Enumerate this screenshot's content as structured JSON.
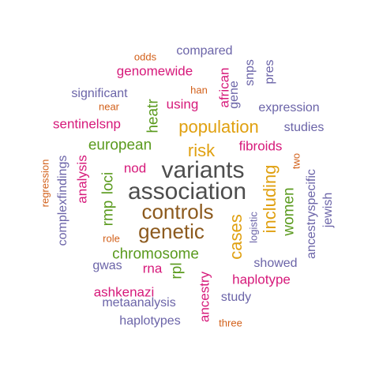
{
  "palette": {
    "dark_gray": "#4d4d4d",
    "brown": "#8c5a1e",
    "gold": "#e0a010",
    "green": "#5a9a1e",
    "magenta": "#d6197a",
    "purple": "#6b64a8",
    "orange": "#d2601a"
  },
  "words": [
    {
      "text": "variants",
      "color": "#4d4d4d"
    },
    {
      "text": "association",
      "color": "#4d4d4d"
    },
    {
      "text": "controls",
      "color": "#8c5a1e"
    },
    {
      "text": "genetic",
      "color": "#8c5a1e"
    },
    {
      "text": "population",
      "color": "#e0a010"
    },
    {
      "text": "risk",
      "color": "#e0a010"
    },
    {
      "text": "including",
      "color": "#e0a010"
    },
    {
      "text": "cases",
      "color": "#e0a010"
    },
    {
      "text": "european",
      "color": "#5a9a1e"
    },
    {
      "text": "chromosome",
      "color": "#5a9a1e"
    },
    {
      "text": "loci",
      "color": "#5a9a1e"
    },
    {
      "text": "rmp",
      "color": "#5a9a1e"
    },
    {
      "text": "heatr",
      "color": "#5a9a1e"
    },
    {
      "text": "rpl",
      "color": "#5a9a1e"
    },
    {
      "text": "women",
      "color": "#5a9a1e"
    },
    {
      "text": "genomewide",
      "color": "#d6197a"
    },
    {
      "text": "sentinelsnp",
      "color": "#d6197a"
    },
    {
      "text": "using",
      "color": "#d6197a"
    },
    {
      "text": "fibroids",
      "color": "#d6197a"
    },
    {
      "text": "nod",
      "color": "#d6197a"
    },
    {
      "text": "analysis",
      "color": "#d6197a"
    },
    {
      "text": "haplotype",
      "color": "#d6197a"
    },
    {
      "text": "ashkenazi",
      "color": "#d6197a"
    },
    {
      "text": "rna",
      "color": "#d6197a"
    },
    {
      "text": "ancestry",
      "color": "#d6197a"
    },
    {
      "text": "african",
      "color": "#d6197a"
    },
    {
      "text": "compared",
      "color": "#6b64a8"
    },
    {
      "text": "significant",
      "color": "#6b64a8"
    },
    {
      "text": "expression",
      "color": "#6b64a8"
    },
    {
      "text": "studies",
      "color": "#6b64a8"
    },
    {
      "text": "complexfindings",
      "color": "#6b64a8"
    },
    {
      "text": "snps",
      "color": "#6b64a8"
    },
    {
      "text": "pres",
      "color": "#6b64a8"
    },
    {
      "text": "gene",
      "color": "#6b64a8"
    },
    {
      "text": "showed",
      "color": "#6b64a8"
    },
    {
      "text": "gwas",
      "color": "#6b64a8"
    },
    {
      "text": "study",
      "color": "#6b64a8"
    },
    {
      "text": "metaanalysis",
      "color": "#6b64a8"
    },
    {
      "text": "haplotypes",
      "color": "#6b64a8"
    },
    {
      "text": "ancestryspecific",
      "color": "#6b64a8"
    },
    {
      "text": "jewish",
      "color": "#6b64a8"
    },
    {
      "text": "logistic",
      "color": "#6b64a8"
    },
    {
      "text": "odds",
      "color": "#d2601a"
    },
    {
      "text": "han",
      "color": "#d2601a"
    },
    {
      "text": "near",
      "color": "#d2601a"
    },
    {
      "text": "regression",
      "color": "#d2601a"
    },
    {
      "text": "two",
      "color": "#d2601a"
    },
    {
      "text": "role",
      "color": "#d2601a"
    },
    {
      "text": "three",
      "color": "#d2601a"
    }
  ]
}
